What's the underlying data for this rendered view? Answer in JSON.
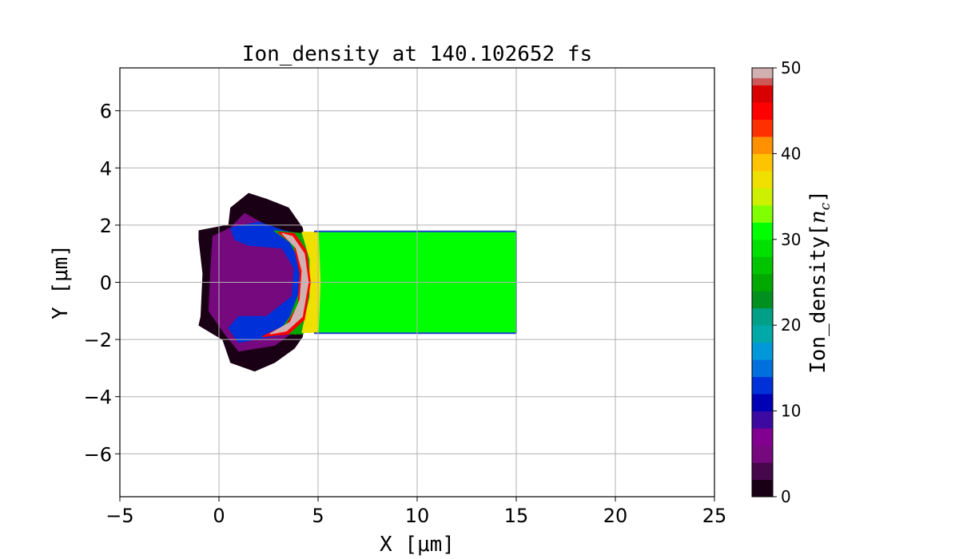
{
  "chart_data": {
    "type": "heatmap",
    "title": "Ion_density at 140.102652 fs",
    "xlabel": "X [μm]",
    "ylabel": "Y [μm]",
    "xlim": [
      -5,
      25
    ],
    "ylim": [
      -7.5,
      7.5
    ],
    "xticks": [
      -5,
      0,
      5,
      10,
      15,
      20,
      25
    ],
    "xtick_labels": [
      "−5",
      "0",
      "5",
      "10",
      "15",
      "20",
      "25"
    ],
    "yticks": [
      -6,
      -4,
      -2,
      0,
      2,
      4,
      6
    ],
    "ytick_labels": [
      "−6",
      "−4",
      "−2",
      "0",
      "2",
      "4",
      "6"
    ],
    "grid": true,
    "colorbar": {
      "label": "Ion_density[n_c]",
      "label_main": "Ion_density[",
      "label_sym": "n",
      "label_sub": "c",
      "label_end": "]",
      "range": [
        0,
        50
      ],
      "ticks": [
        0,
        10,
        20,
        30,
        40,
        50
      ],
      "tick_labels": [
        "0",
        "10",
        "20",
        "30",
        "40",
        "50"
      ],
      "colormap": [
        [
          0,
          "#1a0014"
        ],
        [
          2,
          "#46084a"
        ],
        [
          4,
          "#76097e"
        ],
        [
          6,
          "#820090"
        ],
        [
          8,
          "#3c0aa0"
        ],
        [
          10,
          "#0000b4"
        ],
        [
          12,
          "#0030d8"
        ],
        [
          14,
          "#0070dc"
        ],
        [
          16,
          "#0098d8"
        ],
        [
          18,
          "#00a8a8"
        ],
        [
          20,
          "#00a088"
        ],
        [
          22,
          "#009020"
        ],
        [
          24,
          "#00a800"
        ],
        [
          26,
          "#00c400"
        ],
        [
          28,
          "#00e000"
        ],
        [
          30,
          "#00ff00"
        ],
        [
          32,
          "#80ff00"
        ],
        [
          34,
          "#ccf000"
        ],
        [
          36,
          "#f0e000"
        ],
        [
          38,
          "#ffc400"
        ],
        [
          40,
          "#ff9000"
        ],
        [
          42,
          "#ff3000"
        ],
        [
          44,
          "#ff0000"
        ],
        [
          46,
          "#d80000"
        ],
        [
          48,
          "#cc5858"
        ],
        [
          50,
          "#d0b0b0"
        ]
      ]
    },
    "regions": [
      {
        "name": "expanded-plasma-outer",
        "density": 1,
        "polygon": [
          [
            -1,
            1.8
          ],
          [
            0.5,
            2.0
          ],
          [
            0.6,
            2.6
          ],
          [
            1.5,
            3.1
          ],
          [
            2.4,
            2.9
          ],
          [
            3.5,
            2.6
          ],
          [
            4.2,
            1.9
          ],
          [
            4.6,
            0
          ],
          [
            4.2,
            -1.9
          ],
          [
            3.8,
            -2.3
          ],
          [
            2.8,
            -2.8
          ],
          [
            1.8,
            -3.1
          ],
          [
            0.6,
            -2.8
          ],
          [
            0.2,
            -2.0
          ],
          [
            -1,
            -1.5
          ],
          [
            -0.9,
            -1.2
          ],
          [
            -0.8,
            0.3
          ],
          [
            -1,
            1.5
          ]
        ]
      },
      {
        "name": "expanded-plasma-mid",
        "density": 5,
        "polygon": [
          [
            -0.3,
            1.6
          ],
          [
            0.6,
            1.9
          ],
          [
            1.3,
            2.4
          ],
          [
            2.6,
            1.9
          ],
          [
            4.0,
            1.6
          ],
          [
            4.4,
            0
          ],
          [
            4.0,
            -1.6
          ],
          [
            2.8,
            -2.2
          ],
          [
            1.0,
            -2.4
          ],
          [
            0.3,
            -1.8
          ],
          [
            -0.5,
            -1.0
          ],
          [
            -0.4,
            0.5
          ]
        ]
      },
      {
        "name": "compressed-shell-blue",
        "density": 12,
        "polygon": [
          [
            0.6,
            1.9
          ],
          [
            2.0,
            2.1
          ],
          [
            3.3,
            1.8
          ],
          [
            4.5,
            1.6
          ],
          [
            4.6,
            0
          ],
          [
            4.3,
            -1.6
          ],
          [
            3.0,
            -1.85
          ],
          [
            1.0,
            -2.1
          ],
          [
            0.5,
            -1.6
          ],
          [
            1.0,
            -1.2
          ],
          [
            2.4,
            -1.2
          ],
          [
            3.7,
            -0.5
          ],
          [
            3.8,
            0.5
          ],
          [
            3.2,
            1.2
          ],
          [
            1.5,
            1.3
          ],
          [
            0.8,
            1.5
          ]
        ]
      },
      {
        "name": "compressed-shell-green",
        "density": 24,
        "polygon": [
          [
            2.8,
            1.8
          ],
          [
            4.2,
            1.7
          ],
          [
            4.8,
            1.0
          ],
          [
            4.8,
            -1.2
          ],
          [
            4.2,
            -1.8
          ],
          [
            3.0,
            -1.8
          ],
          [
            3.6,
            -1.2
          ],
          [
            4.1,
            -0.3
          ],
          [
            4.2,
            0.6
          ],
          [
            3.6,
            1.4
          ]
        ]
      },
      {
        "name": "target-slab",
        "density": 31,
        "polygon": [
          [
            4.8,
            1.75
          ],
          [
            15,
            1.75
          ],
          [
            15,
            -1.75
          ],
          [
            4.8,
            -1.75
          ]
        ]
      },
      {
        "name": "shock-front-yellow",
        "density": 36,
        "polygon": [
          [
            4.2,
            1.75
          ],
          [
            5.0,
            1.75
          ],
          [
            5.1,
            0
          ],
          [
            5.0,
            -1.75
          ],
          [
            4.2,
            -1.75
          ],
          [
            4.6,
            -0.5
          ],
          [
            4.6,
            0.8
          ]
        ]
      },
      {
        "name": "shock-front-red",
        "density": 45,
        "polygon": [
          [
            3.0,
            1.75
          ],
          [
            3.8,
            1.7
          ],
          [
            4.4,
            1.1
          ],
          [
            4.6,
            0
          ],
          [
            4.3,
            -1.3
          ],
          [
            3.5,
            -1.8
          ],
          [
            2.2,
            -1.9
          ],
          [
            3.4,
            -1.5
          ],
          [
            4.0,
            -0.8
          ],
          [
            4.1,
            0.3
          ],
          [
            3.8,
            1.3
          ]
        ]
      },
      {
        "name": "shock-front-peak",
        "density": 50,
        "polygon": [
          [
            3.2,
            1.7
          ],
          [
            3.7,
            1.6
          ],
          [
            4.3,
            1.0
          ],
          [
            4.5,
            0
          ],
          [
            4.2,
            -1.2
          ],
          [
            3.4,
            -1.7
          ],
          [
            2.6,
            -1.8
          ],
          [
            3.6,
            -1.4
          ],
          [
            4.1,
            -0.6
          ],
          [
            4.2,
            0.4
          ],
          [
            3.9,
            1.2
          ]
        ]
      }
    ]
  }
}
